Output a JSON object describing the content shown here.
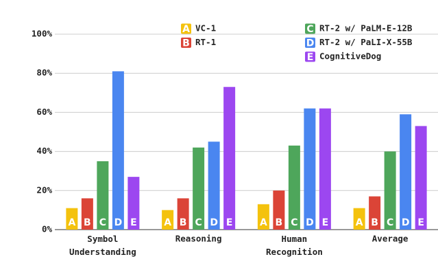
{
  "chart_data": {
    "type": "bar",
    "categories": [
      "Symbol Understanding",
      "Reasoning",
      "Human Recognition",
      "Average"
    ],
    "series": [
      {
        "name": "VC-1",
        "label": "A",
        "color": "#f4c20d",
        "values": [
          11,
          10,
          13,
          11
        ]
      },
      {
        "name": "RT-1",
        "label": "B",
        "color": "#db4437",
        "values": [
          16,
          16,
          20,
          17
        ]
      },
      {
        "name": "RT-2 w/ PaLM-E-12B",
        "label": "C",
        "color": "#4ea65b",
        "values": [
          35,
          42,
          43,
          40
        ]
      },
      {
        "name": "RT-2 w/ PaLI-X-55B",
        "label": "D",
        "color": "#4a86f0",
        "values": [
          81,
          45,
          62,
          59
        ]
      },
      {
        "name": "CognitiveDog",
        "label": "E",
        "color": "#9c47f0",
        "values": [
          27,
          73,
          62,
          53
        ]
      }
    ],
    "ylim": [
      0,
      100
    ],
    "yticks": [
      {
        "value": 0,
        "label": "0%"
      },
      {
        "value": 20,
        "label": "20%"
      },
      {
        "value": 40,
        "label": "40%"
      },
      {
        "value": 60,
        "label": "60%"
      },
      {
        "value": 80,
        "label": "80%"
      },
      {
        "value": 100,
        "label": "100%"
      }
    ],
    "grid": true
  }
}
